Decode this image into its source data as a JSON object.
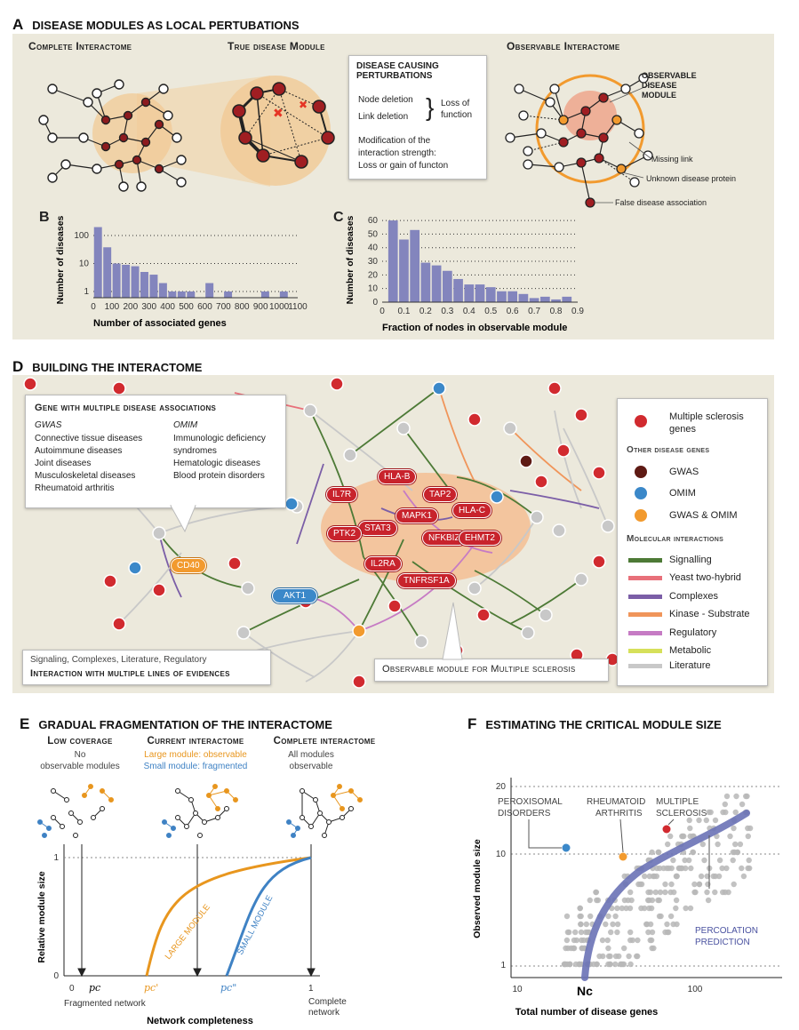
{
  "panel_a": {
    "letter": "A",
    "title": "DISEASE MODULES AS LOCAL PERTUBATIONS",
    "complete_label": "Complete Interactome",
    "true_label": "True disease Module",
    "observable_label": "Observable Interactome",
    "perturb_title_1": "DISEASE CAUSING",
    "perturb_title_2": "PERTURBATIONS",
    "node_deletion": "Node deletion",
    "link_deletion": "Link deletion",
    "loss_1": "Loss of",
    "loss_2": "function",
    "modification_1": "Modification of the",
    "modification_2": "interaction strength:",
    "modification_3": "Loss or gain of functon",
    "obs_module_1": "OBSERVABLE",
    "obs_module_2": "DISEASE",
    "obs_module_3": "MODULE",
    "missing_link": "Missing link",
    "unknown_protein": "Unknown disease protein",
    "false_assoc": "False disease association"
  },
  "panel_b": {
    "letter": "B",
    "chart_data": {
      "type": "bar",
      "x_bins_left": [
        0,
        50,
        100,
        150,
        200,
        250,
        300,
        350,
        400,
        450,
        500,
        550,
        600,
        650,
        700,
        750,
        800,
        850,
        900,
        950,
        1000,
        1050
      ],
      "values": [
        200,
        38,
        10,
        9,
        8,
        5,
        4,
        2,
        1,
        1,
        1,
        0,
        2,
        0,
        1,
        0,
        0,
        0,
        1,
        0,
        1,
        0
      ],
      "xlabel": "Number of associated genes",
      "ylabel": "Number of diseases",
      "xticks": [
        "0",
        "100",
        "200",
        "300",
        "400",
        "500",
        "600",
        "700",
        "800",
        "900",
        "1000",
        "1100"
      ],
      "yticks": [
        "1",
        "10",
        "100"
      ],
      "yscale": "log",
      "xlim": [
        0,
        1100
      ]
    }
  },
  "panel_c": {
    "letter": "C",
    "chart_data": {
      "type": "bar",
      "x_bins_left": [
        0.025,
        0.075,
        0.125,
        0.175,
        0.225,
        0.275,
        0.325,
        0.375,
        0.425,
        0.475,
        0.525,
        0.575,
        0.625,
        0.675,
        0.725,
        0.775,
        0.825
      ],
      "values": [
        60,
        46,
        53,
        29,
        27,
        23,
        17,
        13,
        13,
        11,
        8,
        8,
        6,
        3,
        4,
        2,
        4
      ],
      "xlabel": "Fraction of nodes in observable module",
      "ylabel": "Number of diseases",
      "xticks": [
        "0",
        "0.1",
        "0.2",
        "0.3",
        "0.4",
        "0.5",
        "0.6",
        "0.7",
        "0.8",
        "0.9"
      ],
      "yticks": [
        "0",
        "10",
        "20",
        "30",
        "40",
        "50",
        "60"
      ],
      "xlim": [
        0,
        0.9
      ],
      "ylim": [
        0,
        62
      ]
    }
  },
  "panel_d": {
    "letter": "D",
    "title": "BUILDING THE INTERACTOME",
    "gene_box_title": "Gene with multiple disease associations",
    "gwas_head": "GWAS",
    "gwas_items": [
      "Connective tissue diseases",
      "Autoimmune diseases",
      "Joint diseases",
      "Musculoskeletal diseases",
      "Rheumatoid arthritis"
    ],
    "omim_head": "OMIM",
    "omim_items": [
      "Immunologic deficiency",
      "syndromes",
      "Hematologic diseases",
      "Blood protein disorders"
    ],
    "evidence_line": "Signaling, Complexes, Literature, Regulatory",
    "evidence_title": "Interaction with multiple lines of evidences",
    "obs_ms": "Observable module for Multiple sclerosis",
    "genes": [
      "HLA-B",
      "IL7R",
      "TAP2",
      "HLA-C",
      "MAPK1",
      "STAT3",
      "PTK2",
      "NFKBIZ",
      "EHMT2",
      "IL2RA",
      "TNFRSF1A"
    ],
    "cd40": "CD40",
    "akt1": "AKT1",
    "legend": {
      "ms_1": "Multiple sclerosis",
      "ms_2": "genes",
      "other_head": "Other disease genes",
      "gwas": "GWAS",
      "omim": "OMIM",
      "gwas_omim": "GWAS & OMIM",
      "mol_head": "Molecular interactions",
      "lines": [
        {
          "label": "Signalling",
          "color": "#4d7a36"
        },
        {
          "label": "Yeast two-hybrid",
          "color": "#e8707a"
        },
        {
          "label": "Complexes",
          "color": "#7b5ea7"
        },
        {
          "label": "Kinase - Substrate",
          "color": "#f0955a"
        },
        {
          "label": "Regulatory",
          "color": "#c67bc4"
        },
        {
          "label": "Metabolic",
          "color": "#d6e05a"
        },
        {
          "label": "Literature",
          "color": "#c8c8c8"
        }
      ]
    }
  },
  "panel_e": {
    "letter": "E",
    "title": "GRADUAL FRAGMENTATION OF THE INTERACTOME",
    "low_title": "Low coverage",
    "low_sub_1": "No",
    "low_sub_2": "observable modules",
    "cur_title": "Current interactome",
    "cur_sub_1": "Large module: observable",
    "cur_sub_2": "Small module: fragmented",
    "comp_title": "Complete interactome",
    "comp_sub_1": "All modules",
    "comp_sub_2": "observable",
    "y_1": "1",
    "y_0": "0",
    "ylabel": "Relative module size",
    "x_0": "0",
    "pc": "pc",
    "pc1": "pc'",
    "pc2": "pc\"",
    "x_1": "1",
    "frag": "Fragmented network",
    "comp_net_1": "Complete",
    "comp_net_2": "network",
    "xlabel": "Network completeness",
    "large": "LARGE MODULE",
    "small": "SMALL MODULE",
    "colors": {
      "large": "#e8961e",
      "small": "#3f82c4"
    }
  },
  "panel_f": {
    "letter": "F",
    "title": "ESTIMATING THE CRITICAL MODULE SIZE",
    "peroxisomal_1": "PEROXISOMAL",
    "peroxisomal_2": "DISORDERS",
    "rheum_1": "RHEUMATOID",
    "rheum_2": "ARTHRITIS",
    "ms_1": "MULTIPLE",
    "ms_2": "SCLEROSIS",
    "perc_1": "PERCOLATION",
    "perc_2": "PREDICTION",
    "yticks": [
      "1",
      "10",
      "20"
    ],
    "xticks": [
      "10",
      "100"
    ],
    "nc": "Nc",
    "ylabel": "Observed module size",
    "xlabel": "Total number of disease genes"
  }
}
